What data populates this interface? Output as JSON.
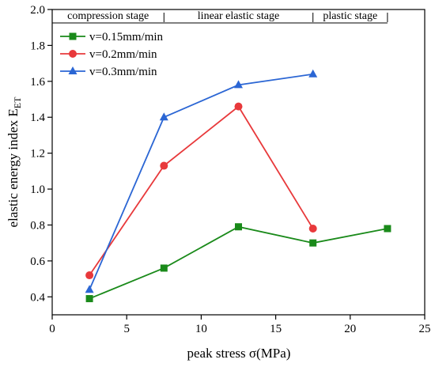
{
  "chart_data": {
    "type": "line",
    "title": "",
    "xlabel": "peak stress σ(MPa)",
    "ylabel": "elastic energy index E",
    "ylabel_subscript": "ET",
    "xlim": [
      0,
      25
    ],
    "ylim": [
      0.3,
      2.0
    ],
    "xticks": [
      0,
      5,
      10,
      15,
      20,
      25
    ],
    "yticks": [
      0.4,
      0.6,
      0.8,
      1.0,
      1.2,
      1.4,
      1.6,
      1.8,
      2.0
    ],
    "xtick_labels": [
      "0",
      "5",
      "10",
      "15",
      "20",
      "25"
    ],
    "ytick_labels": [
      "0.4",
      "0.6",
      "0.8",
      "1.0",
      "1.2",
      "1.4",
      "1.6",
      "1.8",
      "2.0"
    ],
    "grid": false,
    "legend_position": "top-left",
    "stages": [
      {
        "label": "compression stage",
        "x_start": 0,
        "x_end": 7.5
      },
      {
        "label": "linear elastic stage",
        "x_start": 7.5,
        "x_end": 17.5
      },
      {
        "label": "plastic stage",
        "x_start": 17.5,
        "x_end": 22.5
      }
    ],
    "series": [
      {
        "name": "v=0.15mm/min",
        "color": "#1a8a1a",
        "marker": "square",
        "x": [
          2.5,
          7.5,
          12.5,
          17.5,
          22.5
        ],
        "y": [
          0.39,
          0.56,
          0.79,
          0.7,
          0.78
        ]
      },
      {
        "name": "v=0.2mm/min",
        "color": "#e8393b",
        "marker": "circle",
        "x": [
          2.5,
          7.5,
          12.5,
          17.5
        ],
        "y": [
          0.52,
          1.13,
          1.46,
          0.78
        ]
      },
      {
        "name": "v=0.3mm/min",
        "color": "#2b66d4",
        "marker": "triangle",
        "x": [
          2.5,
          7.5,
          12.5,
          17.5
        ],
        "y": [
          0.44,
          1.4,
          1.58,
          1.64
        ]
      }
    ]
  }
}
